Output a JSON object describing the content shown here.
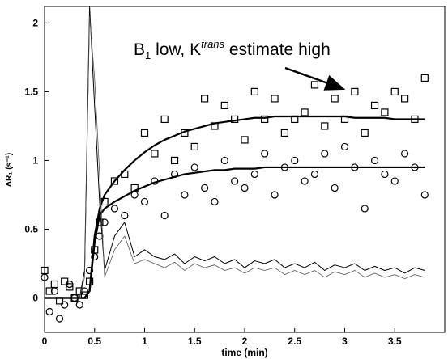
{
  "chart_data": {
    "type": "line",
    "annotation": [
      "B",
      "1",
      " low, K",
      "trans",
      " estimate high"
    ],
    "xlabel": "time (min)",
    "ylabel": "ΔR₁ (s⁻¹)",
    "xlim": [
      0,
      4.0
    ],
    "ylim": [
      -0.25,
      2.12
    ],
    "xticks": [
      0,
      0.5,
      1,
      1.5,
      2,
      2.5,
      3,
      3.5
    ],
    "yticks": [
      0,
      0.5,
      1,
      1.5,
      2
    ],
    "grid": false,
    "x": [
      0,
      0.05,
      0.1,
      0.15,
      0.2,
      0.25,
      0.3,
      0.35,
      0.4,
      0.45,
      0.5,
      0.55,
      0.6,
      0.7,
      0.8,
      0.9,
      1.0,
      1.1,
      1.2,
      1.3,
      1.4,
      1.5,
      1.6,
      1.7,
      1.8,
      1.9,
      2.0,
      2.1,
      2.2,
      2.3,
      2.4,
      2.5,
      2.6,
      2.7,
      2.8,
      2.9,
      3.0,
      3.1,
      3.2,
      3.3,
      3.4,
      3.5,
      3.6,
      3.7,
      3.8
    ],
    "series": [
      {
        "style": "square",
        "color": "#000000",
        "values": [
          0.2,
          0.05,
          0.1,
          -0.02,
          0.12,
          0.08,
          0.0,
          0.05,
          0.02,
          0.12,
          0.35,
          0.55,
          0.7,
          0.85,
          0.9,
          0.8,
          1.2,
          1.05,
          1.3,
          1.0,
          1.2,
          1.1,
          1.45,
          1.25,
          1.4,
          1.3,
          1.15,
          1.5,
          1.3,
          1.45,
          1.2,
          1.3,
          1.35,
          1.55,
          1.25,
          1.45,
          1.3,
          1.5,
          1.2,
          1.4,
          1.35,
          1.5,
          1.45,
          1.3,
          1.6
        ]
      },
      {
        "style": "circle",
        "color": "#000000",
        "values": [
          0.15,
          -0.1,
          0.05,
          -0.15,
          -0.05,
          0.1,
          0.0,
          -0.05,
          0.05,
          0.2,
          0.3,
          0.45,
          0.55,
          0.65,
          0.6,
          0.75,
          0.7,
          0.85,
          0.6,
          0.9,
          0.75,
          0.95,
          0.8,
          0.7,
          1.0,
          0.85,
          0.8,
          0.9,
          1.05,
          0.75,
          0.95,
          1.0,
          0.85,
          0.9,
          1.05,
          0.8,
          1.1,
          0.95,
          0.65,
          1.0,
          0.9,
          0.85,
          1.05,
          0.95,
          0.75
        ]
      },
      {
        "style": "line",
        "color": "#000000",
        "width": 2.2,
        "values": [
          0,
          0,
          0,
          0,
          0,
          0,
          0,
          0,
          0,
          0.05,
          0.45,
          0.65,
          0.75,
          0.85,
          0.93,
          1.0,
          1.06,
          1.11,
          1.15,
          1.18,
          1.21,
          1.23,
          1.25,
          1.27,
          1.28,
          1.29,
          1.3,
          1.31,
          1.31,
          1.32,
          1.32,
          1.32,
          1.32,
          1.32,
          1.32,
          1.32,
          1.32,
          1.31,
          1.31,
          1.31,
          1.31,
          1.3,
          1.3,
          1.3,
          1.3
        ]
      },
      {
        "style": "line",
        "color": "#000000",
        "width": 2.2,
        "values": [
          0,
          0,
          0,
          0,
          0,
          0,
          0,
          0,
          0,
          0.05,
          0.4,
          0.6,
          0.65,
          0.7,
          0.74,
          0.78,
          0.81,
          0.84,
          0.86,
          0.88,
          0.9,
          0.91,
          0.92,
          0.93,
          0.93,
          0.94,
          0.94,
          0.94,
          0.95,
          0.95,
          0.95,
          0.95,
          0.95,
          0.95,
          0.95,
          0.95,
          0.95,
          0.95,
          0.95,
          0.95,
          0.95,
          0.95,
          0.95,
          0.95,
          0.95
        ]
      },
      {
        "style": "line",
        "color": "#000000",
        "width": 1,
        "values": [
          0,
          0,
          0,
          0,
          0,
          0,
          0,
          0,
          0.2,
          2.12,
          1.4,
          0.7,
          0.2,
          0.45,
          0.55,
          0.3,
          0.35,
          0.3,
          0.28,
          0.32,
          0.25,
          0.3,
          0.27,
          0.3,
          0.25,
          0.28,
          0.22,
          0.27,
          0.25,
          0.28,
          0.22,
          0.25,
          0.22,
          0.26,
          0.2,
          0.24,
          0.22,
          0.25,
          0.2,
          0.23,
          0.2,
          0.22,
          0.18,
          0.22,
          0.2
        ]
      },
      {
        "style": "line",
        "color": "#555555",
        "width": 0.8,
        "values": [
          0,
          0,
          0,
          0,
          0,
          0,
          0,
          0,
          0.15,
          2.05,
          1.6,
          0.9,
          0.15,
          0.35,
          0.45,
          0.25,
          0.28,
          0.25,
          0.22,
          0.26,
          0.2,
          0.25,
          0.22,
          0.24,
          0.2,
          0.22,
          0.18,
          0.22,
          0.2,
          0.22,
          0.17,
          0.2,
          0.17,
          0.2,
          0.15,
          0.19,
          0.17,
          0.2,
          0.15,
          0.18,
          0.15,
          0.17,
          0.14,
          0.17,
          0.15
        ]
      }
    ]
  }
}
